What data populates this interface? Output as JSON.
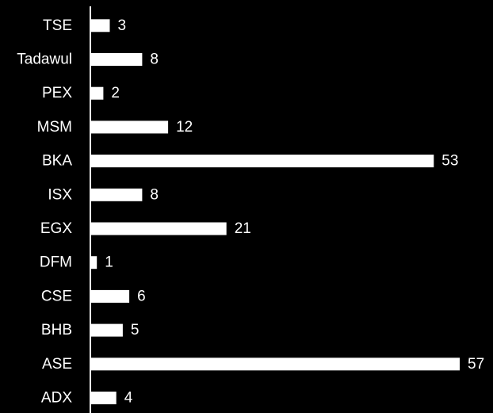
{
  "chart_data": {
    "type": "bar",
    "orientation": "horizontal",
    "categories": [
      "ADX",
      "ASE",
      "BHB",
      "CSE",
      "DFM",
      "EGX",
      "ISX",
      "BKA",
      "MSM",
      "PEX",
      "Tadawul",
      "TSE"
    ],
    "values": [
      4,
      57,
      5,
      6,
      1,
      21,
      8,
      53,
      12,
      2,
      8,
      3
    ],
    "category_order": "bottom-to-top",
    "title": "",
    "xlabel": "",
    "ylabel": "",
    "xlim": [
      0,
      57
    ],
    "data_labels": true,
    "grid": false,
    "legend": "none",
    "colors": {
      "background": "#000000",
      "bar": "#ffffff",
      "text": "#ffffff",
      "axis": "#ffffff"
    }
  }
}
